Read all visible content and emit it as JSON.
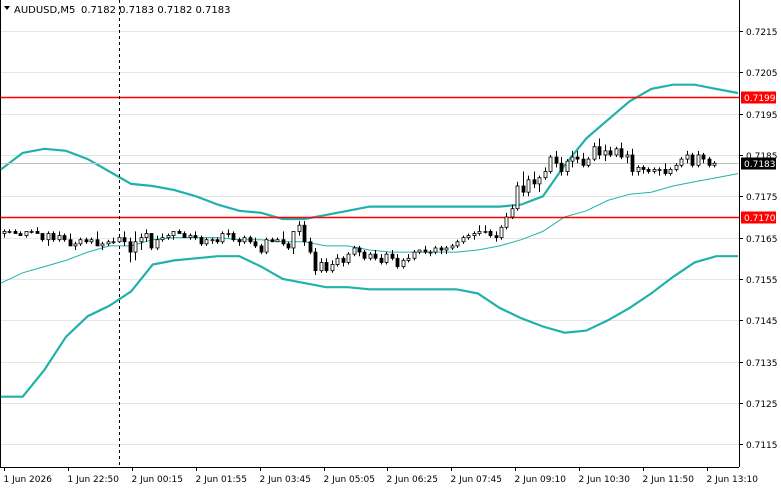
{
  "header": {
    "symbol": "AUDUSD,M5",
    "quote": "0.7182 0.7183 0.7182 0.7183"
  },
  "chart_data": {
    "type": "candlestick",
    "ylim": [
      0.71095,
      0.72225
    ],
    "y_ticks": [
      "0.7215",
      "0.7205",
      "0.7195",
      "0.7185",
      "0.7175",
      "0.7165",
      "0.7155",
      "0.7145",
      "0.7135",
      "0.7125",
      "0.7115"
    ],
    "x_ticks": [
      "1 Jun 2026",
      "1 Jun 22:50",
      "2 Jun 00:15",
      "2 Jun 01:55",
      "2 Jun 03:45",
      "2 Jun 05:05",
      "2 Jun 06:25",
      "2 Jun 07:45",
      "2 Jun 09:10",
      "2 Jun 10:30",
      "2 Jun 11:50",
      "2 Jun 13:10"
    ],
    "current_price": 0.7183,
    "current_price_label": "0.7183",
    "horizontal_levels": [
      {
        "value": 0.7199,
        "label": "0.7199",
        "color": "#ff0000"
      },
      {
        "value": 0.717,
        "label": "0.7170",
        "color": "#ff0000"
      }
    ],
    "bollinger": {
      "color": "#20b2aa",
      "upper": [
        0.71815,
        0.71855,
        0.71865,
        0.7186,
        0.7184,
        0.7181,
        0.7178,
        0.71775,
        0.71765,
        0.7175,
        0.7173,
        0.71715,
        0.7171,
        0.71695,
        0.71695,
        0.71705,
        0.71715,
        0.71725,
        0.71725,
        0.71725,
        0.71725,
        0.71725,
        0.71725,
        0.71725,
        0.7173,
        0.7175,
        0.71825,
        0.7189,
        0.71935,
        0.7198,
        0.7201,
        0.7202,
        0.7202,
        0.7201,
        0.72
      ],
      "middle": [
        0.7154,
        0.71565,
        0.7158,
        0.71595,
        0.71615,
        0.7163,
        0.7163,
        0.71645,
        0.7165,
        0.7165,
        0.7165,
        0.71645,
        0.71645,
        0.7164,
        0.7164,
        0.7163,
        0.7163,
        0.7162,
        0.71615,
        0.71615,
        0.71615,
        0.71615,
        0.7162,
        0.7163,
        0.71645,
        0.71665,
        0.717,
        0.71715,
        0.7174,
        0.71755,
        0.7176,
        0.71775,
        0.71785,
        0.71795,
        0.71805
      ],
      "lower": [
        0.71265,
        0.71265,
        0.7133,
        0.7141,
        0.7146,
        0.71485,
        0.7152,
        0.71585,
        0.71595,
        0.716,
        0.71605,
        0.71605,
        0.7158,
        0.7155,
        0.7154,
        0.7153,
        0.7153,
        0.71525,
        0.71525,
        0.71525,
        0.71525,
        0.71525,
        0.71515,
        0.7148,
        0.71455,
        0.71435,
        0.7142,
        0.71425,
        0.7145,
        0.7148,
        0.71515,
        0.71555,
        0.7159,
        0.71605,
        0.71605
      ]
    },
    "candles": [
      {
        "o": 0.7166,
        "h": 0.7167,
        "l": 0.7165,
        "c": 0.71665
      },
      {
        "o": 0.71665,
        "h": 0.7167,
        "l": 0.7166,
        "c": 0.71665
      },
      {
        "o": 0.71665,
        "h": 0.7167,
        "l": 0.7166,
        "c": 0.7166
      },
      {
        "o": 0.7166,
        "h": 0.71665,
        "l": 0.71655,
        "c": 0.71655
      },
      {
        "o": 0.71655,
        "h": 0.71665,
        "l": 0.7165,
        "c": 0.71665
      },
      {
        "o": 0.71665,
        "h": 0.7167,
        "l": 0.7166,
        "c": 0.71665
      },
      {
        "o": 0.71665,
        "h": 0.71675,
        "l": 0.7166,
        "c": 0.7166
      },
      {
        "o": 0.7166,
        "h": 0.7166,
        "l": 0.7164,
        "c": 0.71645
      },
      {
        "o": 0.71645,
        "h": 0.71665,
        "l": 0.7163,
        "c": 0.7166
      },
      {
        "o": 0.7166,
        "h": 0.71665,
        "l": 0.7164,
        "c": 0.71645
      },
      {
        "o": 0.71645,
        "h": 0.71665,
        "l": 0.7164,
        "c": 0.71655
      },
      {
        "o": 0.71655,
        "h": 0.7166,
        "l": 0.7164,
        "c": 0.71645
      },
      {
        "o": 0.71645,
        "h": 0.7166,
        "l": 0.7163,
        "c": 0.7163
      },
      {
        "o": 0.7163,
        "h": 0.7164,
        "l": 0.7162,
        "c": 0.71635
      },
      {
        "o": 0.71635,
        "h": 0.7165,
        "l": 0.7163,
        "c": 0.71645
      },
      {
        "o": 0.71645,
        "h": 0.7165,
        "l": 0.71635,
        "c": 0.7164
      },
      {
        "o": 0.7164,
        "h": 0.7165,
        "l": 0.71635,
        "c": 0.71645
      },
      {
        "o": 0.71645,
        "h": 0.71665,
        "l": 0.7163,
        "c": 0.7163
      },
      {
        "o": 0.7163,
        "h": 0.7164,
        "l": 0.7162,
        "c": 0.71635
      },
      {
        "o": 0.71635,
        "h": 0.71645,
        "l": 0.7163,
        "c": 0.7164
      },
      {
        "o": 0.7164,
        "h": 0.7165,
        "l": 0.71635,
        "c": 0.7164
      },
      {
        "o": 0.7164,
        "h": 0.7165,
        "l": 0.7164,
        "c": 0.7165
      },
      {
        "o": 0.7165,
        "h": 0.71665,
        "l": 0.7163,
        "c": 0.7164
      },
      {
        "o": 0.7164,
        "h": 0.7165,
        "l": 0.7159,
        "c": 0.71615
      },
      {
        "o": 0.71615,
        "h": 0.71665,
        "l": 0.71595,
        "c": 0.7164
      },
      {
        "o": 0.7164,
        "h": 0.7166,
        "l": 0.7162,
        "c": 0.7165
      },
      {
        "o": 0.7165,
        "h": 0.7167,
        "l": 0.7164,
        "c": 0.7166
      },
      {
        "o": 0.7166,
        "h": 0.7166,
        "l": 0.7162,
        "c": 0.71625
      },
      {
        "o": 0.71625,
        "h": 0.71655,
        "l": 0.7162,
        "c": 0.71645
      },
      {
        "o": 0.71645,
        "h": 0.7166,
        "l": 0.7164,
        "c": 0.7165
      },
      {
        "o": 0.7165,
        "h": 0.7166,
        "l": 0.71645,
        "c": 0.71655
      },
      {
        "o": 0.71655,
        "h": 0.7166,
        "l": 0.71645,
        "c": 0.71665
      },
      {
        "o": 0.71665,
        "h": 0.7167,
        "l": 0.7166,
        "c": 0.7166
      },
      {
        "o": 0.7166,
        "h": 0.71665,
        "l": 0.7165,
        "c": 0.7165
      },
      {
        "o": 0.7165,
        "h": 0.7166,
        "l": 0.71645,
        "c": 0.71655
      },
      {
        "o": 0.71655,
        "h": 0.71665,
        "l": 0.71645,
        "c": 0.7165
      },
      {
        "o": 0.7165,
        "h": 0.71655,
        "l": 0.7163,
        "c": 0.71635
      },
      {
        "o": 0.71635,
        "h": 0.7165,
        "l": 0.7163,
        "c": 0.71645
      },
      {
        "o": 0.71645,
        "h": 0.7165,
        "l": 0.71635,
        "c": 0.71645
      },
      {
        "o": 0.71645,
        "h": 0.7165,
        "l": 0.71635,
        "c": 0.7164
      },
      {
        "o": 0.7164,
        "h": 0.71665,
        "l": 0.71635,
        "c": 0.7166
      },
      {
        "o": 0.7166,
        "h": 0.7167,
        "l": 0.7165,
        "c": 0.7166
      },
      {
        "o": 0.7166,
        "h": 0.71665,
        "l": 0.7164,
        "c": 0.71645
      },
      {
        "o": 0.71645,
        "h": 0.7165,
        "l": 0.7163,
        "c": 0.7164
      },
      {
        "o": 0.7164,
        "h": 0.71655,
        "l": 0.71635,
        "c": 0.7165
      },
      {
        "o": 0.7165,
        "h": 0.71655,
        "l": 0.71635,
        "c": 0.7164
      },
      {
        "o": 0.7164,
        "h": 0.7165,
        "l": 0.71625,
        "c": 0.7163
      },
      {
        "o": 0.7163,
        "h": 0.71635,
        "l": 0.7161,
        "c": 0.71615
      },
      {
        "o": 0.71615,
        "h": 0.7165,
        "l": 0.7161,
        "c": 0.71645
      },
      {
        "o": 0.71645,
        "h": 0.7165,
        "l": 0.7164,
        "c": 0.7164
      },
      {
        "o": 0.7164,
        "h": 0.7165,
        "l": 0.7164,
        "c": 0.71645
      },
      {
        "o": 0.71645,
        "h": 0.71665,
        "l": 0.7163,
        "c": 0.71635
      },
      {
        "o": 0.71635,
        "h": 0.7164,
        "l": 0.7162,
        "c": 0.71625
      },
      {
        "o": 0.71625,
        "h": 0.71665,
        "l": 0.7161,
        "c": 0.71665
      },
      {
        "o": 0.71665,
        "h": 0.7169,
        "l": 0.71655,
        "c": 0.7168
      },
      {
        "o": 0.7168,
        "h": 0.7169,
        "l": 0.7163,
        "c": 0.7164
      },
      {
        "o": 0.7164,
        "h": 0.7165,
        "l": 0.7161,
        "c": 0.71615
      },
      {
        "o": 0.71615,
        "h": 0.71625,
        "l": 0.7156,
        "c": 0.7157
      },
      {
        "o": 0.7157,
        "h": 0.716,
        "l": 0.71565,
        "c": 0.7159
      },
      {
        "o": 0.7159,
        "h": 0.716,
        "l": 0.71565,
        "c": 0.7157
      },
      {
        "o": 0.7157,
        "h": 0.71595,
        "l": 0.71565,
        "c": 0.71585
      },
      {
        "o": 0.71585,
        "h": 0.7161,
        "l": 0.7158,
        "c": 0.716
      },
      {
        "o": 0.716,
        "h": 0.71605,
        "l": 0.7158,
        "c": 0.7159
      },
      {
        "o": 0.7159,
        "h": 0.71615,
        "l": 0.71585,
        "c": 0.7161
      },
      {
        "o": 0.7161,
        "h": 0.7163,
        "l": 0.71605,
        "c": 0.71625
      },
      {
        "o": 0.71625,
        "h": 0.7163,
        "l": 0.71605,
        "c": 0.71615
      },
      {
        "o": 0.71615,
        "h": 0.7162,
        "l": 0.71595,
        "c": 0.716
      },
      {
        "o": 0.716,
        "h": 0.71615,
        "l": 0.71595,
        "c": 0.7161
      },
      {
        "o": 0.7161,
        "h": 0.7162,
        "l": 0.71595,
        "c": 0.716
      },
      {
        "o": 0.716,
        "h": 0.7161,
        "l": 0.71585,
        "c": 0.7159
      },
      {
        "o": 0.7159,
        "h": 0.71615,
        "l": 0.71585,
        "c": 0.7161
      },
      {
        "o": 0.7161,
        "h": 0.7162,
        "l": 0.71595,
        "c": 0.716
      },
      {
        "o": 0.716,
        "h": 0.7161,
        "l": 0.71575,
        "c": 0.7158
      },
      {
        "o": 0.7158,
        "h": 0.716,
        "l": 0.71575,
        "c": 0.71595
      },
      {
        "o": 0.71595,
        "h": 0.7161,
        "l": 0.7159,
        "c": 0.716
      },
      {
        "o": 0.716,
        "h": 0.7162,
        "l": 0.71595,
        "c": 0.71615
      },
      {
        "o": 0.71615,
        "h": 0.7162,
        "l": 0.7161,
        "c": 0.7162
      },
      {
        "o": 0.7162,
        "h": 0.7163,
        "l": 0.7161,
        "c": 0.71615
      },
      {
        "o": 0.71615,
        "h": 0.7162,
        "l": 0.71605,
        "c": 0.71615
      },
      {
        "o": 0.71615,
        "h": 0.7163,
        "l": 0.7161,
        "c": 0.71625
      },
      {
        "o": 0.71625,
        "h": 0.7163,
        "l": 0.7161,
        "c": 0.7162
      },
      {
        "o": 0.7162,
        "h": 0.7163,
        "l": 0.7161,
        "c": 0.71625
      },
      {
        "o": 0.71625,
        "h": 0.71635,
        "l": 0.7162,
        "c": 0.7163
      },
      {
        "o": 0.7163,
        "h": 0.71645,
        "l": 0.71625,
        "c": 0.7164
      },
      {
        "o": 0.7164,
        "h": 0.71655,
        "l": 0.71635,
        "c": 0.7165
      },
      {
        "o": 0.7165,
        "h": 0.7166,
        "l": 0.71645,
        "c": 0.71655
      },
      {
        "o": 0.71655,
        "h": 0.71665,
        "l": 0.71645,
        "c": 0.7166
      },
      {
        "o": 0.7166,
        "h": 0.7168,
        "l": 0.71655,
        "c": 0.71665
      },
      {
        "o": 0.71665,
        "h": 0.7168,
        "l": 0.7166,
        "c": 0.71665
      },
      {
        "o": 0.71665,
        "h": 0.7167,
        "l": 0.7165,
        "c": 0.71655
      },
      {
        "o": 0.71655,
        "h": 0.71665,
        "l": 0.7164,
        "c": 0.7165
      },
      {
        "o": 0.7165,
        "h": 0.7168,
        "l": 0.71645,
        "c": 0.71675
      },
      {
        "o": 0.71675,
        "h": 0.7171,
        "l": 0.7167,
        "c": 0.717
      },
      {
        "o": 0.717,
        "h": 0.7173,
        "l": 0.71695,
        "c": 0.7172
      },
      {
        "o": 0.7172,
        "h": 0.71785,
        "l": 0.71715,
        "c": 0.71775
      },
      {
        "o": 0.71775,
        "h": 0.7181,
        "l": 0.7175,
        "c": 0.7176
      },
      {
        "o": 0.7176,
        "h": 0.718,
        "l": 0.7175,
        "c": 0.7179
      },
      {
        "o": 0.7179,
        "h": 0.7181,
        "l": 0.7177,
        "c": 0.7178
      },
      {
        "o": 0.7178,
        "h": 0.718,
        "l": 0.7176,
        "c": 0.71795
      },
      {
        "o": 0.71795,
        "h": 0.7182,
        "l": 0.7179,
        "c": 0.7181
      },
      {
        "o": 0.7181,
        "h": 0.7185,
        "l": 0.71805,
        "c": 0.71845
      },
      {
        "o": 0.71845,
        "h": 0.7186,
        "l": 0.7182,
        "c": 0.7183
      },
      {
        "o": 0.7183,
        "h": 0.71845,
        "l": 0.718,
        "c": 0.7181
      },
      {
        "o": 0.7181,
        "h": 0.7184,
        "l": 0.718,
        "c": 0.71835
      },
      {
        "o": 0.71835,
        "h": 0.7186,
        "l": 0.7182,
        "c": 0.71845
      },
      {
        "o": 0.71845,
        "h": 0.7186,
        "l": 0.7183,
        "c": 0.7184
      },
      {
        "o": 0.7184,
        "h": 0.71855,
        "l": 0.7182,
        "c": 0.71825
      },
      {
        "o": 0.71825,
        "h": 0.71845,
        "l": 0.7182,
        "c": 0.7184
      },
      {
        "o": 0.7184,
        "h": 0.7188,
        "l": 0.71835,
        "c": 0.7187
      },
      {
        "o": 0.7187,
        "h": 0.7189,
        "l": 0.7184,
        "c": 0.7185
      },
      {
        "o": 0.7185,
        "h": 0.71875,
        "l": 0.71835,
        "c": 0.7186
      },
      {
        "o": 0.7186,
        "h": 0.7187,
        "l": 0.71845,
        "c": 0.7185
      },
      {
        "o": 0.7185,
        "h": 0.7187,
        "l": 0.71845,
        "c": 0.71865
      },
      {
        "o": 0.71865,
        "h": 0.7188,
        "l": 0.7184,
        "c": 0.71845
      },
      {
        "o": 0.71845,
        "h": 0.7186,
        "l": 0.7183,
        "c": 0.7185
      },
      {
        "o": 0.7185,
        "h": 0.71865,
        "l": 0.718,
        "c": 0.7181
      },
      {
        "o": 0.7181,
        "h": 0.71825,
        "l": 0.718,
        "c": 0.7182
      },
      {
        "o": 0.7182,
        "h": 0.71825,
        "l": 0.71805,
        "c": 0.71815
      },
      {
        "o": 0.71815,
        "h": 0.7182,
        "l": 0.71805,
        "c": 0.7181
      },
      {
        "o": 0.7181,
        "h": 0.7182,
        "l": 0.71805,
        "c": 0.71815
      },
      {
        "o": 0.71815,
        "h": 0.7182,
        "l": 0.718,
        "c": 0.71815
      },
      {
        "o": 0.71815,
        "h": 0.7183,
        "l": 0.718,
        "c": 0.71805
      },
      {
        "o": 0.71805,
        "h": 0.7182,
        "l": 0.718,
        "c": 0.71815
      },
      {
        "o": 0.71815,
        "h": 0.7183,
        "l": 0.7181,
        "c": 0.71825
      },
      {
        "o": 0.71825,
        "h": 0.71845,
        "l": 0.7182,
        "c": 0.7184
      },
      {
        "o": 0.7184,
        "h": 0.7186,
        "l": 0.7183,
        "c": 0.7185
      },
      {
        "o": 0.7185,
        "h": 0.71855,
        "l": 0.7182,
        "c": 0.71825
      },
      {
        "o": 0.71825,
        "h": 0.7186,
        "l": 0.7182,
        "c": 0.7185
      },
      {
        "o": 0.7185,
        "h": 0.71855,
        "l": 0.7183,
        "c": 0.7184
      },
      {
        "o": 0.7184,
        "h": 0.71845,
        "l": 0.7182,
        "c": 0.71825
      },
      {
        "o": 0.71825,
        "h": 0.71835,
        "l": 0.7182,
        "c": 0.7183
      }
    ]
  }
}
